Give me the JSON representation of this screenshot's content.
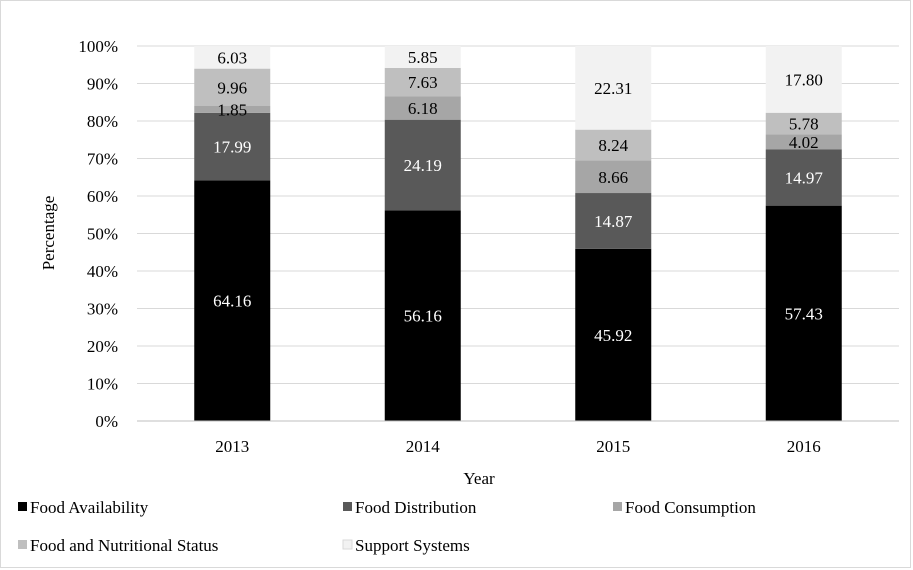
{
  "chart_data": {
    "type": "bar",
    "stacked": true,
    "title": "",
    "xlabel": "Year",
    "ylabel": "Percentage",
    "categories": [
      "2013",
      "2014",
      "2015",
      "2016"
    ],
    "ylim": [
      0,
      100
    ],
    "yticks": [
      "0%",
      "10%",
      "20%",
      "30%",
      "40%",
      "50%",
      "60%",
      "70%",
      "80%",
      "90%",
      "100%"
    ],
    "grid": true,
    "legend_position": "bottom",
    "series": [
      {
        "name": "Food Availability",
        "color": "#000000",
        "label_color": "#ffffff",
        "values": [
          64.16,
          56.16,
          45.92,
          57.43
        ],
        "labels": [
          "64.16",
          "56.16",
          "45.92",
          "57.43"
        ]
      },
      {
        "name": "Food Distribution",
        "color": "#595959",
        "label_color": "#ffffff",
        "values": [
          17.99,
          24.19,
          14.87,
          14.97
        ],
        "labels": [
          "17.99",
          "24.19",
          "14.87",
          "14.97"
        ]
      },
      {
        "name": "Food Consumption",
        "color": "#a6a6a6",
        "label_color": "#000000",
        "values": [
          1.85,
          6.18,
          8.66,
          4.02
        ],
        "labels": [
          "1.85",
          "6.18",
          "8.66",
          "4.02"
        ]
      },
      {
        "name": "Food and Nutritional Status",
        "color": "#bfbfbf",
        "label_color": "#000000",
        "values": [
          9.96,
          7.63,
          8.24,
          5.78
        ],
        "labels": [
          "9.96",
          "7.63",
          "8.24",
          "5.78"
        ]
      },
      {
        "name": "Support Systems",
        "color": "#f2f2f2",
        "label_color": "#000000",
        "values": [
          6.03,
          5.85,
          22.31,
          17.8
        ],
        "labels": [
          "6.03",
          "5.85",
          "22.31",
          "17.80"
        ]
      }
    ]
  }
}
